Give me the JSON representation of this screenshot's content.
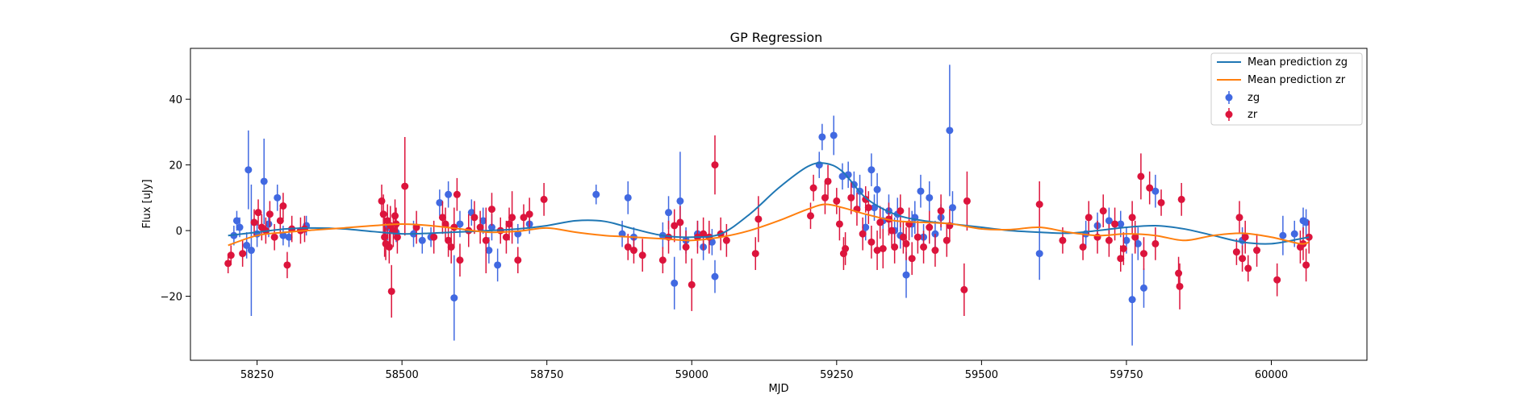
{
  "chart_data": {
    "type": "scatter",
    "title": "GP Regression",
    "xlabel": "MJD",
    "ylabel": "Flux [uJy]",
    "xlim": [
      58135,
      60165
    ],
    "ylim": [
      -39.5,
      55.5
    ],
    "xticks": [
      58250,
      58500,
      58750,
      59000,
      59250,
      59500,
      59750,
      60000
    ],
    "yticks": [
      -20,
      0,
      20,
      40
    ],
    "grid": false,
    "legend_position": "top-right",
    "lines": [
      {
        "name": "Mean prediction zg",
        "color": "#1f77b4",
        "x": [
          58200,
          58250,
          58300,
          58350,
          58400,
          58450,
          58500,
          58550,
          58600,
          58650,
          58700,
          58750,
          58800,
          58850,
          58900,
          58950,
          59000,
          59050,
          59100,
          59150,
          59200,
          59230,
          59260,
          59300,
          59350,
          59400,
          59450,
          59500,
          59550,
          59600,
          59650,
          59700,
          59750,
          59800,
          59850,
          59900,
          59950,
          60000,
          60050,
          60065
        ],
        "y": [
          -1.5,
          -0.5,
          0.5,
          0.8,
          0.5,
          -0.3,
          -1.0,
          -0.8,
          -0.4,
          0.0,
          0.5,
          1.5,
          3.0,
          2.8,
          0.5,
          -1.5,
          -2.0,
          -1.0,
          5.0,
          13.0,
          19.5,
          20.5,
          18.0,
          10.0,
          5.0,
          3.0,
          2.0,
          1.0,
          0.0,
          -0.5,
          -0.8,
          0.0,
          1.0,
          1.5,
          0.5,
          -1.5,
          -3.5,
          -4.0,
          -2.5,
          -2.0
        ]
      },
      {
        "name": "Mean prediction zr",
        "color": "#ff7f0e",
        "x": [
          58200,
          58250,
          58300,
          58350,
          58400,
          58450,
          58500,
          58550,
          58600,
          58650,
          58700,
          58750,
          58800,
          58850,
          58900,
          58950,
          59000,
          59050,
          59100,
          59150,
          59200,
          59230,
          59260,
          59300,
          59350,
          59400,
          59450,
          59500,
          59550,
          59600,
          59650,
          59700,
          59750,
          59800,
          59850,
          59900,
          59950,
          60000,
          60050,
          60065
        ],
        "y": [
          -4.5,
          -1.5,
          -0.5,
          0.2,
          0.8,
          1.5,
          2.0,
          1.5,
          0.5,
          -0.5,
          -0.2,
          0.8,
          -0.5,
          -1.5,
          -2.0,
          -2.5,
          -3.0,
          -2.0,
          0.0,
          3.0,
          6.5,
          8.0,
          7.0,
          5.0,
          3.0,
          2.5,
          2.0,
          0.5,
          0.3,
          1.0,
          -0.5,
          -1.5,
          -1.0,
          -1.5,
          -3.0,
          -1.5,
          -0.8,
          -2.0,
          -4.0,
          -3.5
        ]
      }
    ],
    "series": [
      {
        "name": "zg",
        "color": "#4169e1",
        "x": [
          58210,
          58215,
          58220,
          58232,
          58235,
          58240,
          58250,
          58262,
          58270,
          58285,
          58295,
          58305,
          58335,
          58475,
          58490,
          58520,
          58535,
          58550,
          58565,
          58580,
          58590,
          58600,
          58620,
          58640,
          58650,
          58655,
          58665,
          58700,
          58720,
          58835,
          58880,
          58890,
          58900,
          58950,
          58960,
          58970,
          58980,
          58990,
          59010,
          59020,
          59035,
          59040,
          59220,
          59225,
          59245,
          59260,
          59270,
          59280,
          59290,
          59300,
          59310,
          59315,
          59320,
          59330,
          59340,
          59350,
          59355,
          59360,
          59370,
          59380,
          59385,
          59395,
          59400,
          59410,
          59420,
          59430,
          59445,
          59450,
          59600,
          59680,
          59700,
          59720,
          59740,
          59750,
          59760,
          59770,
          59780,
          59800,
          59950,
          60020,
          60040,
          60055,
          60060
        ],
        "y": [
          -1.5,
          3.0,
          1.0,
          -4.5,
          18.5,
          -6.0,
          -1.0,
          15.0,
          2.0,
          10.0,
          -1.5,
          -2.0,
          1.5,
          1.0,
          -0.5,
          -1.0,
          -3.0,
          -2.0,
          8.5,
          11.0,
          -20.5,
          2.0,
          5.5,
          3.0,
          -6.0,
          1.0,
          -10.5,
          -1.0,
          2.0,
          11.0,
          -1.0,
          10.0,
          -2.0,
          -1.5,
          5.5,
          -16.0,
          9.0,
          -3.0,
          -1.0,
          -5.0,
          -3.5,
          -14.0,
          20.0,
          28.5,
          29.0,
          16.5,
          17.0,
          14.0,
          12.0,
          1.0,
          18.5,
          7.0,
          12.5,
          3.0,
          6.0,
          0.0,
          5.0,
          -1.5,
          -13.5,
          2.0,
          4.0,
          12.0,
          -2.0,
          10.0,
          -1.0,
          4.0,
          30.5,
          7.0,
          -7.0,
          -1.0,
          1.5,
          3.0,
          2.0,
          -3.0,
          -21.0,
          -4.0,
          -17.5,
          12.0,
          -3.0,
          -1.5,
          -1.0,
          3.0,
          2.5
        ],
        "yerr": [
          3,
          3,
          3,
          4,
          12,
          20,
          4,
          13,
          4,
          4,
          3,
          3,
          3,
          4,
          3,
          4,
          4,
          3,
          4,
          4,
          13,
          4,
          4,
          4,
          4,
          4,
          5,
          3,
          3,
          3,
          4,
          5,
          3,
          4,
          5,
          8,
          15,
          4,
          4,
          4,
          4,
          5,
          4,
          4,
          6,
          4,
          4,
          4,
          5,
          4,
          5,
          4,
          5,
          4,
          5,
          4,
          5,
          4,
          7,
          4,
          5,
          5,
          4,
          5,
          4,
          4,
          20,
          5,
          8,
          4,
          4,
          4,
          4,
          4,
          14,
          5,
          6,
          5,
          4,
          6,
          4,
          4,
          4
        ]
      },
      {
        "name": "zr",
        "color": "#dc143c",
        "x": [
          58200,
          58205,
          58225,
          58245,
          58252,
          58258,
          58265,
          58272,
          58280,
          58290,
          58295,
          58302,
          58310,
          58325,
          58332,
          58465,
          58468,
          58470,
          58472,
          58475,
          58478,
          58480,
          58482,
          58485,
          58488,
          58490,
          58492,
          58505,
          58525,
          58555,
          58570,
          58575,
          58580,
          58585,
          58590,
          58595,
          58600,
          58615,
          58625,
          58635,
          58645,
          58655,
          58670,
          58680,
          58685,
          58690,
          58700,
          58710,
          58720,
          58745,
          58890,
          58900,
          58915,
          58950,
          58960,
          58970,
          58980,
          58990,
          59000,
          59010,
          59020,
          59030,
          59040,
          59050,
          59060,
          59110,
          59115,
          59205,
          59210,
          59230,
          59235,
          59250,
          59255,
          59262,
          59265,
          59275,
          59285,
          59295,
          59300,
          59305,
          59310,
          59320,
          59325,
          59330,
          59340,
          59345,
          59350,
          59360,
          59365,
          59370,
          59375,
          59380,
          59390,
          59400,
          59410,
          59420,
          59430,
          59440,
          59445,
          59470,
          59475,
          59600,
          59640,
          59675,
          59685,
          59700,
          59710,
          59720,
          59730,
          59740,
          59745,
          59760,
          59765,
          59775,
          59780,
          59790,
          59800,
          59810,
          59840,
          59842,
          59845,
          59940,
          59945,
          59950,
          59955,
          59960,
          59975,
          60010,
          60050,
          60055,
          60060,
          60065
        ],
        "y": [
          -10.0,
          -7.5,
          -7.0,
          2.5,
          5.5,
          1.0,
          0.0,
          5.0,
          -2.0,
          3.0,
          7.5,
          -10.5,
          0.5,
          0.0,
          0.5,
          9.0,
          5.0,
          -2.0,
          -4.0,
          3.0,
          -5.0,
          1.5,
          -18.5,
          0.0,
          4.5,
          2.0,
          -2.0,
          13.5,
          1.0,
          -2.0,
          4.0,
          2.0,
          -3.0,
          -5.0,
          1.0,
          11.0,
          -9.0,
          0.0,
          4.0,
          1.0,
          -3.0,
          6.5,
          0.0,
          -2.0,
          2.0,
          4.0,
          -9.0,
          4.0,
          5.0,
          9.5,
          -5.0,
          -6.0,
          -7.5,
          -9.0,
          -2.0,
          1.5,
          2.5,
          -5.0,
          -16.5,
          -2.0,
          -1.0,
          -2.0,
          20.0,
          -1.0,
          -3.0,
          -7.0,
          3.5,
          4.5,
          13.0,
          10.0,
          15.0,
          9.0,
          2.0,
          -7.0,
          -5.5,
          10.0,
          6.5,
          -1.0,
          9.5,
          7.0,
          -3.5,
          -6.0,
          2.5,
          -5.5,
          3.5,
          0.0,
          -5.0,
          6.0,
          -2.0,
          -4.0,
          2.0,
          -8.5,
          -2.0,
          -5.0,
          1.0,
          -6.0,
          6.0,
          -3.0,
          1.5,
          -18.0,
          9.0,
          8.0,
          -3.0,
          -5.0,
          4.0,
          -2.0,
          6.0,
          -3.0,
          2.0,
          -8.5,
          -5.5,
          4.0,
          -2.0,
          16.5,
          -7.0,
          13.0,
          -4.0,
          8.5,
          -13.0,
          -17.0,
          9.5,
          -6.5,
          4.0,
          -8.5,
          -2.0,
          -11.5,
          -6.0,
          -15.0,
          -5.0,
          -4.0,
          -10.5,
          -2.0
        ],
        "yerr": [
          3,
          3,
          4,
          4,
          4,
          4,
          4,
          4,
          4,
          4,
          4,
          4,
          4,
          4,
          4,
          5,
          6,
          6,
          5,
          5,
          5,
          6,
          8,
          5,
          5,
          5,
          5,
          15,
          5,
          5,
          5,
          5,
          5,
          5,
          6,
          5,
          5,
          5,
          5,
          5,
          10,
          5,
          4,
          5,
          5,
          8,
          4,
          4,
          5,
          5,
          4,
          4,
          5,
          4,
          5,
          5,
          5,
          5,
          8,
          5,
          5,
          5,
          9,
          5,
          5,
          5,
          7,
          4,
          4,
          5,
          5,
          4,
          5,
          5,
          5,
          5,
          5,
          5,
          4,
          5,
          5,
          6,
          5,
          6,
          5,
          5,
          5,
          5,
          5,
          5,
          5,
          5,
          5,
          5,
          5,
          5,
          5,
          5,
          5,
          8,
          9,
          7,
          4,
          4,
          5,
          5,
          5,
          5,
          5,
          4,
          5,
          5,
          5,
          7,
          5,
          5,
          5,
          4,
          5,
          7,
          5,
          4,
          5,
          4,
          5,
          4,
          5,
          5,
          5,
          5,
          5,
          5
        ]
      }
    ]
  }
}
